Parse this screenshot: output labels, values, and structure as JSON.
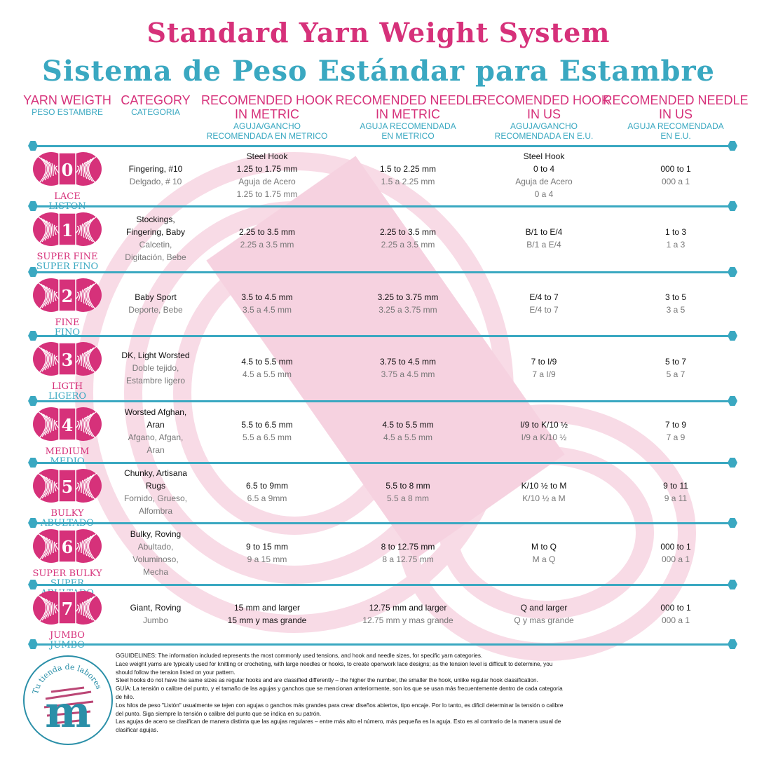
{
  "title": "Standard Yarn Weight System",
  "subtitle": "Sistema de Peso Estándar para Estambre",
  "colors": {
    "pink": "#d6317a",
    "teal": "#3aa8c1",
    "bg_pink": "#f8dbe6"
  },
  "headers": [
    {
      "en": [
        "YARN WEIGTH"
      ],
      "es": [
        "PESO ESTAMBRE"
      ]
    },
    {
      "en": [
        "CATEGORY"
      ],
      "es": [
        "CATEGORIA"
      ]
    },
    {
      "en": [
        "RECOMENDED HOOK",
        "IN METRIC"
      ],
      "es": [
        "AGUJA/GANCHO",
        "RECOMENDADA EN METRICO"
      ]
    },
    {
      "en": [
        "RECOMENDED NEEDLE",
        "IN METRIC"
      ],
      "es": [
        "AGUJA RECOMENDADA",
        "EN METRICO"
      ]
    },
    {
      "en": [
        "RECOMENDED HOOK",
        "IN US"
      ],
      "es": [
        "AGUJA/GANCHO",
        "RECOMENDADA EN E.U."
      ]
    },
    {
      "en": [
        "RECOMENDED NEEDLE",
        "IN US"
      ],
      "es": [
        "AGUJA RECOMENDADA",
        "EN E.U."
      ]
    }
  ],
  "rows": [
    {
      "number": "0",
      "name_en": "LACE",
      "name_es": "LISTON",
      "cells": [
        {
          "en": [
            "Fingering, #10"
          ],
          "es": [
            "Delgado, # 10"
          ]
        },
        {
          "en": [
            "Steel Hook",
            "1.25 to 1.75 mm"
          ],
          "es": [
            "Aguja de Acero",
            "1.25 to 1.75 mm"
          ]
        },
        {
          "en": [
            "1.5 to 2.25 mm"
          ],
          "es": [
            "1.5 a 2.25 mm"
          ]
        },
        {
          "en": [
            "Steel Hook",
            "0 to 4"
          ],
          "es": [
            "Aguja de Acero",
            "0 a 4"
          ]
        },
        {
          "en": [
            "000 to 1"
          ],
          "es": [
            "000 a 1"
          ]
        }
      ]
    },
    {
      "number": "1",
      "name_en": "SUPER FINE",
      "name_es": "SUPER FINO",
      "cells": [
        {
          "en": [
            "Stockings,",
            "Fingering, Baby"
          ],
          "es": [
            "Calcetin,",
            "Digitación, Bebe"
          ]
        },
        {
          "en": [
            "2.25 to 3.5 mm"
          ],
          "es": [
            "2.25 a 3.5 mm"
          ]
        },
        {
          "en": [
            "2.25 to 3.5 mm"
          ],
          "es": [
            "2.25 a 3.5 mm"
          ]
        },
        {
          "en": [
            "B/1 to E/4"
          ],
          "es": [
            "B/1 a E/4"
          ]
        },
        {
          "en": [
            "1 to 3"
          ],
          "es": [
            "1 a 3"
          ]
        }
      ]
    },
    {
      "number": "2",
      "name_en": "FINE",
      "name_es": "FINO",
      "cells": [
        {
          "en": [
            "Baby Sport"
          ],
          "es": [
            "Deporte, Bebe"
          ]
        },
        {
          "en": [
            "3.5 to 4.5 mm"
          ],
          "es": [
            "3.5 a 4.5 mm"
          ]
        },
        {
          "en": [
            "3.25 to 3.75 mm"
          ],
          "es": [
            "3.25 a 3.75 mm"
          ]
        },
        {
          "en": [
            "E/4 to 7"
          ],
          "es": [
            "E/4 to 7"
          ]
        },
        {
          "en": [
            "3 to 5"
          ],
          "es": [
            "3 a 5"
          ]
        }
      ]
    },
    {
      "number": "3",
      "name_en": "LIGTH",
      "name_es": "LIGERO",
      "cells": [
        {
          "en": [
            "DK, Light Worsted"
          ],
          "es": [
            "Doble tejido,",
            "Estambre ligero"
          ]
        },
        {
          "en": [
            "4.5 to 5.5 mm"
          ],
          "es": [
            "4.5 a 5.5 mm"
          ]
        },
        {
          "en": [
            "3.75 to 4.5 mm"
          ],
          "es": [
            "3.75 a 4.5 mm"
          ]
        },
        {
          "en": [
            "7 to I/9"
          ],
          "es": [
            "7 a I/9"
          ]
        },
        {
          "en": [
            "5 to 7"
          ],
          "es": [
            "5 a 7"
          ]
        }
      ]
    },
    {
      "number": "4",
      "name_en": "MEDIUM",
      "name_es": "MEDIO",
      "cells": [
        {
          "en": [
            "Worsted Afghan,",
            "Aran"
          ],
          "es": [
            "Afgano, Afgan,",
            "Aran"
          ]
        },
        {
          "en": [
            "5.5 to 6.5 mm"
          ],
          "es": [
            "5.5 a 6.5 mm"
          ]
        },
        {
          "en": [
            "4.5 to 5.5 mm"
          ],
          "es": [
            "4.5 a 5.5 mm"
          ]
        },
        {
          "en": [
            "I/9 to K/10 ½"
          ],
          "es": [
            "I/9 a K/10 ½"
          ]
        },
        {
          "en": [
            "7 to 9"
          ],
          "es": [
            "7 a 9"
          ]
        }
      ]
    },
    {
      "number": "5",
      "name_en": "BULKY",
      "name_es": "ABULTADO",
      "cells": [
        {
          "en": [
            "Chunky, Artisana",
            "Rugs"
          ],
          "es": [
            "Fornido, Grueso,",
            "Alfombra"
          ]
        },
        {
          "en": [
            "6.5 to 9mm"
          ],
          "es": [
            "6.5 a 9mm"
          ]
        },
        {
          "en": [
            "5.5 to 8 mm"
          ],
          "es": [
            "5.5 a 8 mm"
          ]
        },
        {
          "en": [
            "K/10 ½ to M"
          ],
          "es": [
            "K/10 ½ a M"
          ]
        },
        {
          "en": [
            "9 to 11"
          ],
          "es": [
            "9 a 11"
          ]
        }
      ]
    },
    {
      "number": "6",
      "name_en": "SUPER BULKY",
      "name_es": "SUPER ABULTADO",
      "cells": [
        {
          "en": [
            "Bulky, Roving"
          ],
          "es": [
            "Abultado,",
            "Voluminoso,",
            "Mecha"
          ]
        },
        {
          "en": [
            "9 to 15 mm"
          ],
          "es": [
            "9 a 15 mm"
          ]
        },
        {
          "en": [
            "8 to 12.75 mm"
          ],
          "es": [
            "8 a 12.75 mm"
          ]
        },
        {
          "en": [
            "M to Q"
          ],
          "es": [
            "M a Q"
          ]
        },
        {
          "en": [
            "000 to 1"
          ],
          "es": [
            "000 a 1"
          ]
        }
      ]
    },
    {
      "number": "7",
      "name_en": "JUMBO",
      "name_es": "JUMBO",
      "cells": [
        {
          "en": [
            "Giant, Roving"
          ],
          "es": [
            "Jumbo"
          ]
        },
        {
          "en": [
            "15 mm and larger",
            "15 mm y mas grande"
          ],
          "es": []
        },
        {
          "en": [
            "12.75 mm and larger"
          ],
          "es": [
            "12.75 mm y mas grande"
          ]
        },
        {
          "en": [
            "Q and larger"
          ],
          "es": [
            "Q y mas grande"
          ]
        },
        {
          "en": [
            "000 to 1"
          ],
          "es": [
            "000 a 1"
          ]
        }
      ]
    }
  ],
  "guidelines": [
    "GGUIDELINES: The information included represents the most commonly used tensions, and hook and needle sizes, for specific yarn categories.",
    "Lace weight yarns are typically used for knitting or crocheting, with large needles or hooks, to create openwork lace designs; as the tension level is difficult to determine, you should follow the tension listed on your pattern.",
    "Steel hooks do not have the same sizes as regular hooks and are classified differently – the higher the number, the smaller the hook, unlike regular hook classification.",
    "GUÍA: La tensión o calibre del punto, y el tamaño de las agujas y ganchos que se mencionan anteriormente, son los que se usan más frecuentemente dentro de cada categoria de hilo.",
    "Los hilos de peso \"Listón\" usualmente se tejen con agujas o ganchos más grandes para crear diseños abiertos, tipo encaje. Por lo tanto, es dificil determinar la tensión o calibre del punto. Siga siempre la tensión o calibre del punto que se indica en su patrón.",
    "Las agujas de acero se clasifican de manera distinta que las agujas regulares – entre más alto el número, más pequeña es la aguja. Esto es al contrario de la manera usual de clasificar agujas."
  ],
  "logo": {
    "text": "Tu tienda de labores",
    "letter": "m"
  }
}
